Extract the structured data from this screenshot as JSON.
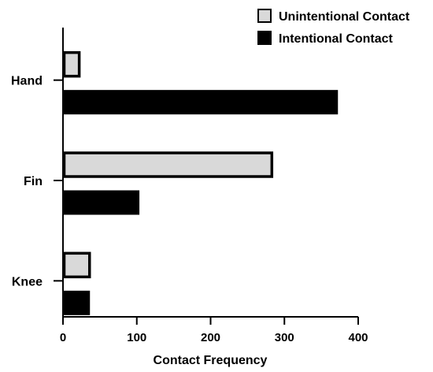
{
  "chart_data": {
    "type": "bar",
    "orientation": "horizontal",
    "categories": [
      "Hand",
      "Fin",
      "Knee"
    ],
    "series": [
      {
        "name": "Unintentional Contact",
        "values": [
          22,
          283,
          36
        ],
        "color": "#d9d9d9"
      },
      {
        "name": "Intentional Contact",
        "values": [
          372,
          103,
          36
        ],
        "color": "#000000"
      }
    ],
    "xlabel": "Contact Frequency",
    "ylabel": "",
    "xlim": [
      0,
      400
    ],
    "xticks": [
      "0",
      "100",
      "200",
      "300",
      "400"
    ],
    "grid": false,
    "legend_position": "top-right"
  }
}
